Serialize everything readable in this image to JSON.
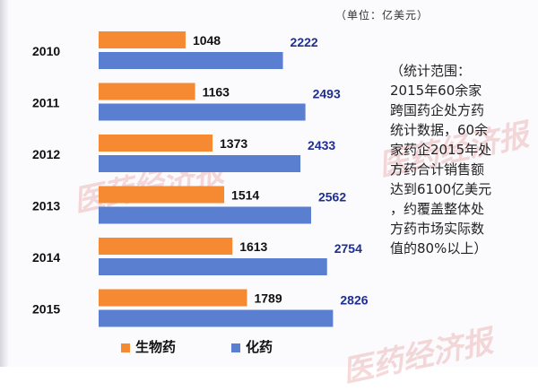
{
  "unit_note": "（单位：亿美元）",
  "notes_lines": [
    "（统计范围：",
    "2015年60余家",
    "跨国药企处方药",
    "统计数据，60余",
    "家药企2015年处",
    "方药合计销售额",
    "达到6100亿美元",
    "，约覆盖整体处",
    "方药市场实际数",
    "值的80%以上）"
  ],
  "watermark": "医药经济报",
  "colors": {
    "bio": "#f58a32",
    "chem": "#5b7fd0",
    "chem_label": "#1f2f8f"
  },
  "chart_data": {
    "type": "bar",
    "orientation": "horizontal",
    "categories": [
      "2010",
      "2011",
      "2012",
      "2013",
      "2014",
      "2015"
    ],
    "series": [
      {
        "name": "生物药",
        "values": [
          1048,
          1163,
          1373,
          1514,
          1613,
          1789
        ]
      },
      {
        "name": "化药",
        "values": [
          2222,
          2493,
          2433,
          2562,
          2754,
          2826
        ]
      }
    ],
    "grid": false,
    "legend_position": "bottom-left"
  }
}
